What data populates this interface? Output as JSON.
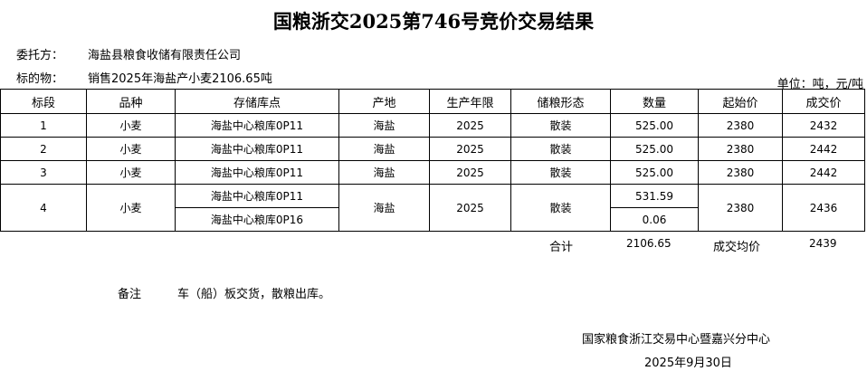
{
  "title": "国粮浙交2025第746号竞价交易结果",
  "consignor_label": "委托方：",
  "consignor": "海盐县粮食收储有限责任公司",
  "subject_label": "标的物：",
  "subject": "销售2025年海盐产小麦2106.65吨",
  "unit": "单位：吨，元/吨",
  "headers": [
    "标段",
    "品种",
    "存储库点",
    "产地",
    "生产年限",
    "储粮形态",
    "数量",
    "起始价",
    "成交价"
  ],
  "rows": [
    {
      "lot": "1",
      "variety": "小麦",
      "depots": [
        "海盐中心粮库0P11"
      ],
      "origin": "海盐",
      "year": "2025",
      "form": "散装",
      "quantities": [
        "525.00"
      ],
      "start_price": "2380",
      "deal_price": "2432"
    },
    {
      "lot": "2",
      "variety": "小麦",
      "depots": [
        "海盐中心粮库0P11"
      ],
      "origin": "海盐",
      "year": "2025",
      "form": "散装",
      "quantities": [
        "525.00"
      ],
      "start_price": "2380",
      "deal_price": "2442"
    },
    {
      "lot": "3",
      "variety": "小麦",
      "depots": [
        "海盐中心粮库0P11"
      ],
      "origin": "海盐",
      "year": "2025",
      "form": "散装",
      "quantities": [
        "525.00"
      ],
      "start_price": "2380",
      "deal_price": "2442"
    },
    {
      "lot": "4",
      "variety": "小麦",
      "depots": [
        "海盐中心粮库0P11",
        "海盐中心粮库0P16"
      ],
      "origin": "海盐",
      "year": "2025",
      "form": "散装",
      "quantities": [
        "531.59",
        "0.06"
      ],
      "start_price": "2380",
      "deal_price": "2436"
    }
  ],
  "total_label": "合计",
  "total_qty": "2106.65",
  "avg_label": "成交均价",
  "avg_price": "2439",
  "remark_label": "备注",
  "remark": "车（船）板交货，散粮出库。",
  "issuer": "国家粮食浙江交易中心暨嘉兴分中心",
  "date": "2025年9月30日"
}
